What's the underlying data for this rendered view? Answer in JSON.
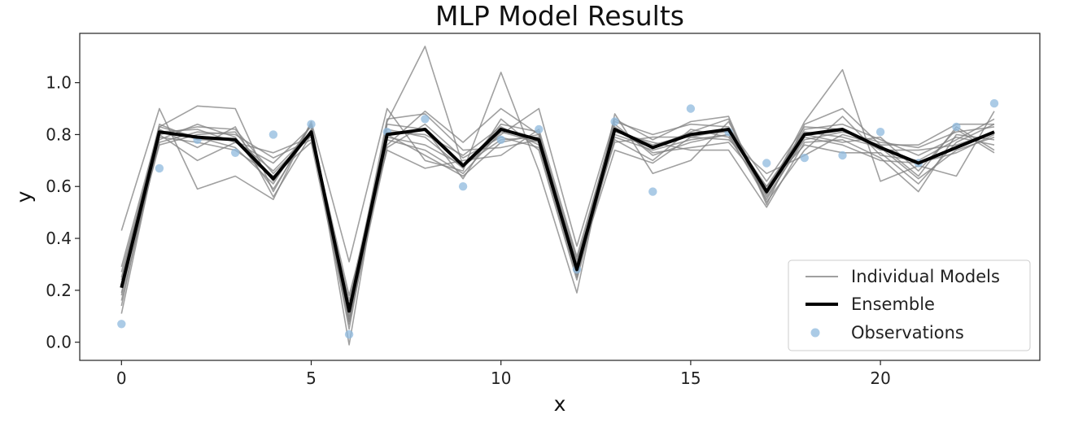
{
  "chart_data": {
    "type": "line",
    "title": "MLP Model Results",
    "xlabel": "x",
    "ylabel": "y",
    "xlim": [
      -1.1,
      24.2
    ],
    "ylim": [
      -0.07,
      1.19
    ],
    "xticks": [
      0,
      5,
      10,
      15,
      20
    ],
    "yticks": [
      0.0,
      0.2,
      0.4,
      0.6,
      0.8,
      1.0
    ],
    "grid": false,
    "legend_position": "bottom-right",
    "x": [
      0,
      1,
      2,
      3,
      4,
      5,
      6,
      7,
      8,
      9,
      10,
      11,
      12,
      13,
      14,
      15,
      16,
      17,
      18,
      19,
      20,
      21,
      22,
      23
    ],
    "individual_models": {
      "name": "Individual Models",
      "color": "#808080",
      "series": [
        [
          0.43,
          0.9,
          0.59,
          0.64,
          0.55,
          0.85,
          0.31,
          0.9,
          0.7,
          0.66,
          1.04,
          0.66,
          0.19,
          0.88,
          0.65,
          0.7,
          0.85,
          0.57,
          0.85,
          1.05,
          0.62,
          0.68,
          0.64,
          0.89
        ],
        [
          0.29,
          0.83,
          0.91,
          0.9,
          0.58,
          0.84,
          -0.01,
          0.85,
          1.14,
          0.68,
          0.8,
          0.9,
          0.37,
          0.86,
          0.78,
          0.85,
          0.87,
          0.53,
          0.84,
          0.9,
          0.76,
          0.64,
          0.83,
          0.74
        ],
        [
          0.11,
          0.8,
          0.7,
          0.77,
          0.73,
          0.79,
          0.14,
          0.76,
          0.89,
          0.77,
          0.9,
          0.8,
          0.28,
          0.74,
          0.69,
          0.79,
          0.78,
          0.65,
          0.72,
          0.8,
          0.76,
          0.76,
          0.84,
          0.84
        ],
        [
          0.22,
          0.76,
          0.8,
          0.81,
          0.62,
          0.84,
          0.1,
          0.81,
          0.8,
          0.72,
          0.83,
          0.76,
          0.3,
          0.79,
          0.74,
          0.78,
          0.8,
          0.55,
          0.79,
          0.76,
          0.7,
          0.69,
          0.73,
          0.8
        ],
        [
          0.19,
          0.79,
          0.77,
          0.74,
          0.64,
          0.77,
          0.07,
          0.79,
          0.76,
          0.68,
          0.78,
          0.79,
          0.26,
          0.82,
          0.76,
          0.8,
          0.81,
          0.6,
          0.76,
          0.73,
          0.73,
          0.61,
          0.77,
          0.84
        ],
        [
          0.24,
          0.84,
          0.78,
          0.78,
          0.66,
          0.81,
          0.18,
          0.74,
          0.67,
          0.7,
          0.72,
          0.82,
          0.33,
          0.84,
          0.72,
          0.77,
          0.8,
          0.59,
          0.82,
          0.84,
          0.78,
          0.72,
          0.79,
          0.76
        ],
        [
          0.16,
          0.78,
          0.84,
          0.79,
          0.59,
          0.82,
          0.05,
          0.84,
          0.82,
          0.63,
          0.86,
          0.74,
          0.24,
          0.81,
          0.77,
          0.74,
          0.74,
          0.52,
          0.77,
          0.78,
          0.71,
          0.58,
          0.8,
          0.78
        ],
        [
          0.27,
          0.81,
          0.82,
          0.77,
          0.69,
          0.83,
          0.12,
          0.86,
          0.88,
          0.74,
          0.75,
          0.78,
          0.31,
          0.85,
          0.8,
          0.84,
          0.83,
          0.62,
          0.83,
          0.82,
          0.74,
          0.74,
          0.76,
          0.81
        ],
        [
          0.14,
          0.82,
          0.75,
          0.83,
          0.56,
          0.8,
          0.09,
          0.78,
          0.74,
          0.65,
          0.81,
          0.77,
          0.27,
          0.78,
          0.7,
          0.82,
          0.79,
          0.57,
          0.8,
          0.77,
          0.79,
          0.66,
          0.82,
          0.73
        ],
        [
          0.21,
          0.77,
          0.81,
          0.8,
          0.71,
          0.78,
          0.16,
          0.82,
          0.79,
          0.67,
          0.84,
          0.81,
          0.29,
          0.8,
          0.75,
          0.81,
          0.86,
          0.54,
          0.74,
          0.87,
          0.72,
          0.7,
          0.78,
          0.86
        ],
        [
          0.18,
          0.83,
          0.79,
          0.75,
          0.61,
          0.84,
          0.08,
          0.75,
          0.84,
          0.71,
          0.79,
          0.75,
          0.25,
          0.83,
          0.73,
          0.75,
          0.77,
          0.6,
          0.81,
          0.79,
          0.75,
          0.63,
          0.74,
          0.79
        ],
        [
          0.25,
          0.8,
          0.83,
          0.82,
          0.65,
          0.8,
          0.13,
          0.8,
          0.72,
          0.64,
          0.77,
          0.8,
          0.32,
          0.77,
          0.79,
          0.79,
          0.82,
          0.56,
          0.78,
          0.81,
          0.77,
          0.75,
          0.81,
          0.83
        ]
      ]
    },
    "ensemble": {
      "name": "Ensemble",
      "color": "#000000",
      "values": [
        0.21,
        0.81,
        0.79,
        0.78,
        0.63,
        0.81,
        0.12,
        0.8,
        0.82,
        0.68,
        0.82,
        0.78,
        0.28,
        0.82,
        0.75,
        0.8,
        0.82,
        0.58,
        0.8,
        0.82,
        0.75,
        0.69,
        0.75,
        0.81
      ]
    },
    "observations": {
      "name": "Observations",
      "color": "#8fbadd",
      "values": [
        0.07,
        0.67,
        0.78,
        0.73,
        0.8,
        0.84,
        0.03,
        0.81,
        0.86,
        0.6,
        0.78,
        0.82,
        0.28,
        0.85,
        0.58,
        0.9,
        0.81,
        0.69,
        0.71,
        0.72,
        0.81,
        0.69,
        0.83,
        0.92
      ]
    }
  }
}
